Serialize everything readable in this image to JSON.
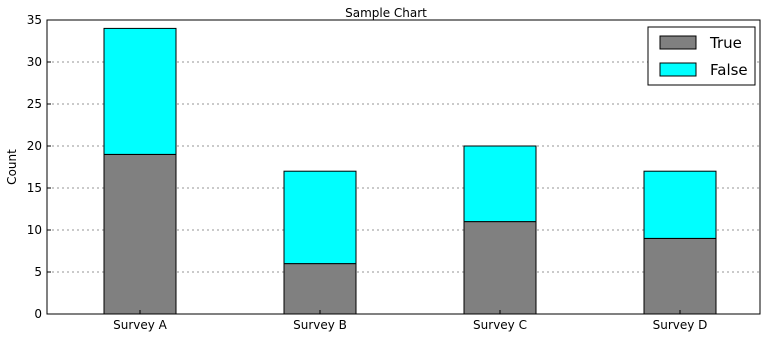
{
  "chart_data": {
    "type": "bar",
    "stacked": true,
    "title": "Sample Chart",
    "xlabel": "",
    "ylabel": "Count",
    "categories": [
      "Survey A",
      "Survey B",
      "Survey C",
      "Survey D"
    ],
    "series": [
      {
        "name": "True",
        "values": [
          19,
          6,
          11,
          9
        ],
        "color": "#808080"
      },
      {
        "name": "False",
        "values": [
          15,
          11,
          9,
          8
        ],
        "color": "#00ffff"
      }
    ],
    "ylim": [
      0,
      35
    ],
    "yticks": [
      0,
      5,
      10,
      15,
      20,
      25,
      30,
      35
    ],
    "grid": true,
    "legend_position": "top-right"
  }
}
